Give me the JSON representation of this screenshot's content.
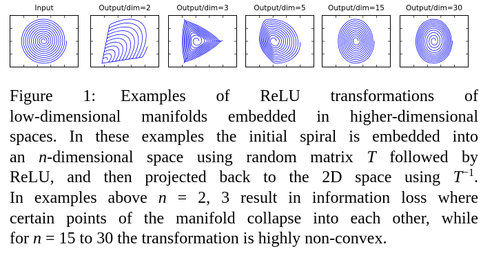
{
  "panels": [
    {
      "title": "Input",
      "mode": "spiral"
    },
    {
      "title": "Output/dim=2",
      "mode": "dim2"
    },
    {
      "title": "Output/dim=3",
      "mode": "dim3"
    },
    {
      "title": "Output/dim=5",
      "mode": "dim5"
    },
    {
      "title": "Output/dim=15",
      "mode": "dim15"
    },
    {
      "title": "Output/dim=30",
      "mode": "dim30"
    }
  ],
  "line_color": "#0000ff",
  "caption": {
    "label": "Figure 1:",
    "l1": "Examples of ReLU transformations of",
    "l2": "low-dimensional manifolds embedded in higher-dimensional",
    "l3": "spaces. In these examples the initial spiral is embedded into",
    "l4a": "an",
    "l4var": "n",
    "l4b": "-dimensional space using random matrix",
    "l4var2": "T",
    "l4c": "followed by",
    "l5a": "ReLU, and then projected back to the 2D space using",
    "l5var": "T",
    "l5sup": "−1",
    "l5b": ".",
    "l6a": "In examples above",
    "l6var": "n",
    "l6b": "= 2, 3 result in information loss where",
    "l7": "certain points of the manifold collapse into each other, while",
    "l8a": "for",
    "l8var": "n",
    "l8b": "= 15 to 30 the transformation is highly non-convex."
  }
}
